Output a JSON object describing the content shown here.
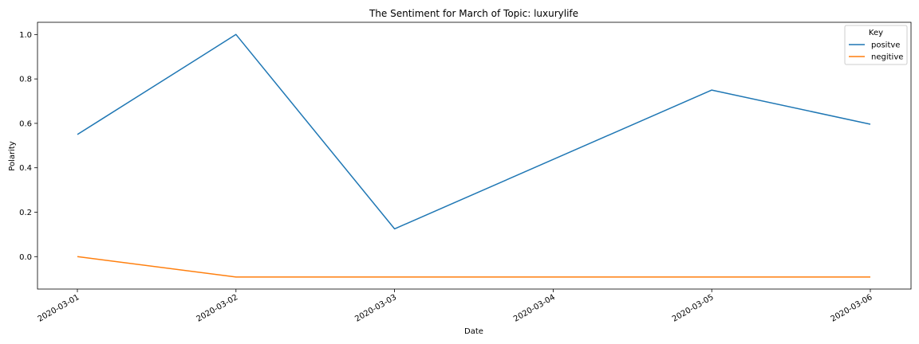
{
  "chart_data": {
    "type": "line",
    "title": "The Sentiment for March of Topic: luxurylife",
    "xlabel": "Date",
    "ylabel": "Polarity",
    "x": [
      "2020-03-01",
      "2020-03-02",
      "2020-03-03",
      "2020-03-04",
      "2020-03-05",
      "2020-03-06"
    ],
    "yticks": [
      0.0,
      0.2,
      0.4,
      0.6,
      0.8,
      1.0
    ],
    "ytick_labels": [
      "0.0",
      "0.2",
      "0.4",
      "0.6",
      "0.8",
      "1.0"
    ],
    "ylim": [
      -0.146,
      1.055
    ],
    "grid": false,
    "legend": {
      "title": "Key",
      "placement": "top-right"
    },
    "series": [
      {
        "name": "positve",
        "color": "#1f77b4",
        "points": [
          {
            "x": "2020-03-01",
            "y": 0.55
          },
          {
            "x": "2020-03-02",
            "y": 1.0
          },
          {
            "x": "2020-03-03",
            "y": 0.125
          },
          {
            "x": "2020-03-05",
            "y": 0.75
          },
          {
            "x": "2020-03-06",
            "y": 0.596
          }
        ]
      },
      {
        "name": "negitive",
        "color": "#ff7f0e",
        "points": [
          {
            "x": "2020-03-01",
            "y": 0.0
          },
          {
            "x": "2020-03-02",
            "y": -0.092
          },
          {
            "x": "2020-03-03",
            "y": -0.092
          },
          {
            "x": "2020-03-05",
            "y": -0.092
          },
          {
            "x": "2020-03-06",
            "y": -0.092
          }
        ]
      }
    ]
  }
}
